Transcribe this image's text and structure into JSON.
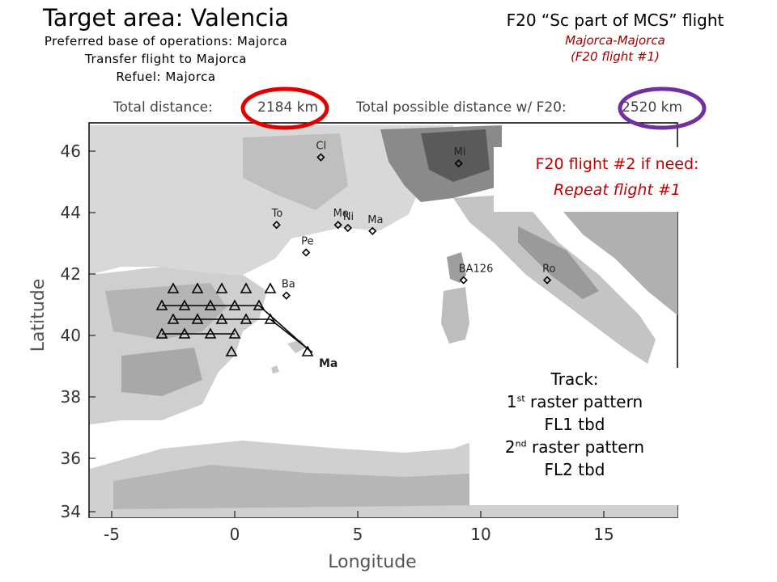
{
  "target": {
    "title": "Target area: Valencia",
    "lines": [
      "Preferred base of operations: Majorca",
      "Transfer flight to Majorca",
      "Refuel: Majorca"
    ]
  },
  "flight": {
    "title": "F20 “Sc part of MCS” flight",
    "route": "Majorca-Majorca",
    "note": "(F20 flight #1)"
  },
  "distances": {
    "total_label": "Total distance:",
    "total_value": "2184 km",
    "possible_label": "Total possible distance w/ F20:",
    "possible_value": "2520 km"
  },
  "flight2": {
    "line1": "F20 flight #2 if need:",
    "line2": "Repeat flight #1"
  },
  "track": {
    "heading": "Track:",
    "l1_num": "1",
    "l1_sup": "st",
    "l1_rest": " raster pattern",
    "l2": "FL1 tbd",
    "l3_num": "2",
    "l3_sup": "nd",
    "l3_rest": " raster pattern",
    "l4": "FL2 tbd"
  },
  "map": {
    "xlabel": "Longitude",
    "ylabel": "Latitude",
    "x_ticks": [
      "-5",
      "0",
      "5",
      "10",
      "15"
    ],
    "y_ticks": [
      "46",
      "44",
      "42",
      "40",
      "38",
      "36",
      "34"
    ],
    "cities": [
      {
        "label": "Cl",
        "lon": 3.5,
        "lat": 45.8
      },
      {
        "label": "Mi",
        "lon": 9.1,
        "lat": 45.6
      },
      {
        "label": "To",
        "lon": 1.7,
        "lat": 43.6
      },
      {
        "label": "Mo",
        "lon": 4.2,
        "lat": 43.6
      },
      {
        "label": "Ni",
        "lon": 4.6,
        "lat": 43.5
      },
      {
        "label": "Ma",
        "lon": 5.6,
        "lat": 43.4
      },
      {
        "label": "Pe",
        "lon": 2.9,
        "lat": 42.7
      },
      {
        "label": "Ba",
        "lon": 2.1,
        "lat": 41.3
      },
      {
        "label": "BA126",
        "lon": 9.3,
        "lat": 41.8
      },
      {
        "label": "Ro",
        "lon": 12.7,
        "lat": 41.8
      }
    ],
    "base_label": "Ma",
    "colors": {
      "red_circle": "#e00000",
      "purple_circle": "#7030a0",
      "flight2_text": "#c00000",
      "route_title": "#a00000"
    }
  }
}
